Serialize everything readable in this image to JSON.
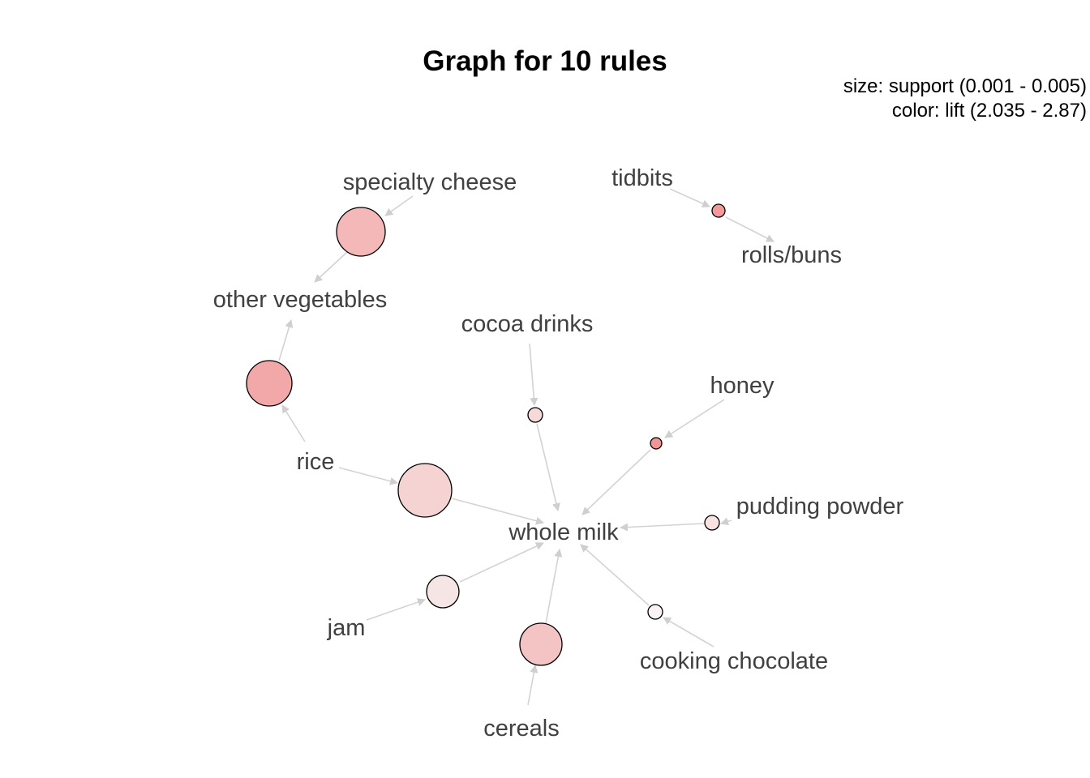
{
  "title": "Graph for 10 rules",
  "legend": {
    "size": "size: support (0.001 - 0.005)",
    "color": "color: lift (2.035 - 2.87)"
  },
  "items": [
    {
      "id": "specialty_cheese",
      "label": "specialty cheese"
    },
    {
      "id": "other_vegetables",
      "label": "other vegetables"
    },
    {
      "id": "tidbits",
      "label": "tidbits"
    },
    {
      "id": "rolls_buns",
      "label": "rolls/buns"
    },
    {
      "id": "cocoa_drinks",
      "label": "cocoa drinks"
    },
    {
      "id": "honey",
      "label": "honey"
    },
    {
      "id": "rice",
      "label": "rice"
    },
    {
      "id": "whole_milk",
      "label": "whole milk"
    },
    {
      "id": "pudding_powder",
      "label": "pudding powder"
    },
    {
      "id": "jam",
      "label": "jam"
    },
    {
      "id": "cooking_chocolate",
      "label": "cooking chocolate"
    },
    {
      "id": "cereals",
      "label": "cereals"
    }
  ],
  "rules": [
    {
      "id": "r1",
      "lhs": "specialty_cheese",
      "rhs": "other_vegetables",
      "fill": "#f5b8b8"
    },
    {
      "id": "r2",
      "lhs": "tidbits",
      "rhs": "rolls_buns",
      "fill": "#f29a9a"
    },
    {
      "id": "r3",
      "lhs": "rice",
      "rhs": "other_vegetables",
      "fill": "#f2a8a8"
    },
    {
      "id": "r4",
      "lhs": "cocoa_drinks",
      "rhs": "whole_milk",
      "fill": "#f6dada"
    },
    {
      "id": "r5",
      "lhs": "honey",
      "rhs": "whole_milk",
      "fill": "#f29595"
    },
    {
      "id": "r6",
      "lhs": "rice",
      "rhs": "whole_milk",
      "fill": "#f5d3d3"
    },
    {
      "id": "r7",
      "lhs": "pudding_powder",
      "rhs": "whole_milk",
      "fill": "#f8e2e2"
    },
    {
      "id": "r8",
      "lhs": "jam",
      "rhs": "whole_milk",
      "fill": "#f5e5e5"
    },
    {
      "id": "r9",
      "lhs": "cooking_chocolate",
      "rhs": "whole_milk",
      "fill": "#faf3f3"
    },
    {
      "id": "r10",
      "lhs": "cereals",
      "rhs": "whole_milk",
      "fill": "#f4c4c4"
    }
  ],
  "colors": {
    "edge": "#d3d3d3",
    "label": "#404040",
    "node_stroke": "#000000"
  }
}
